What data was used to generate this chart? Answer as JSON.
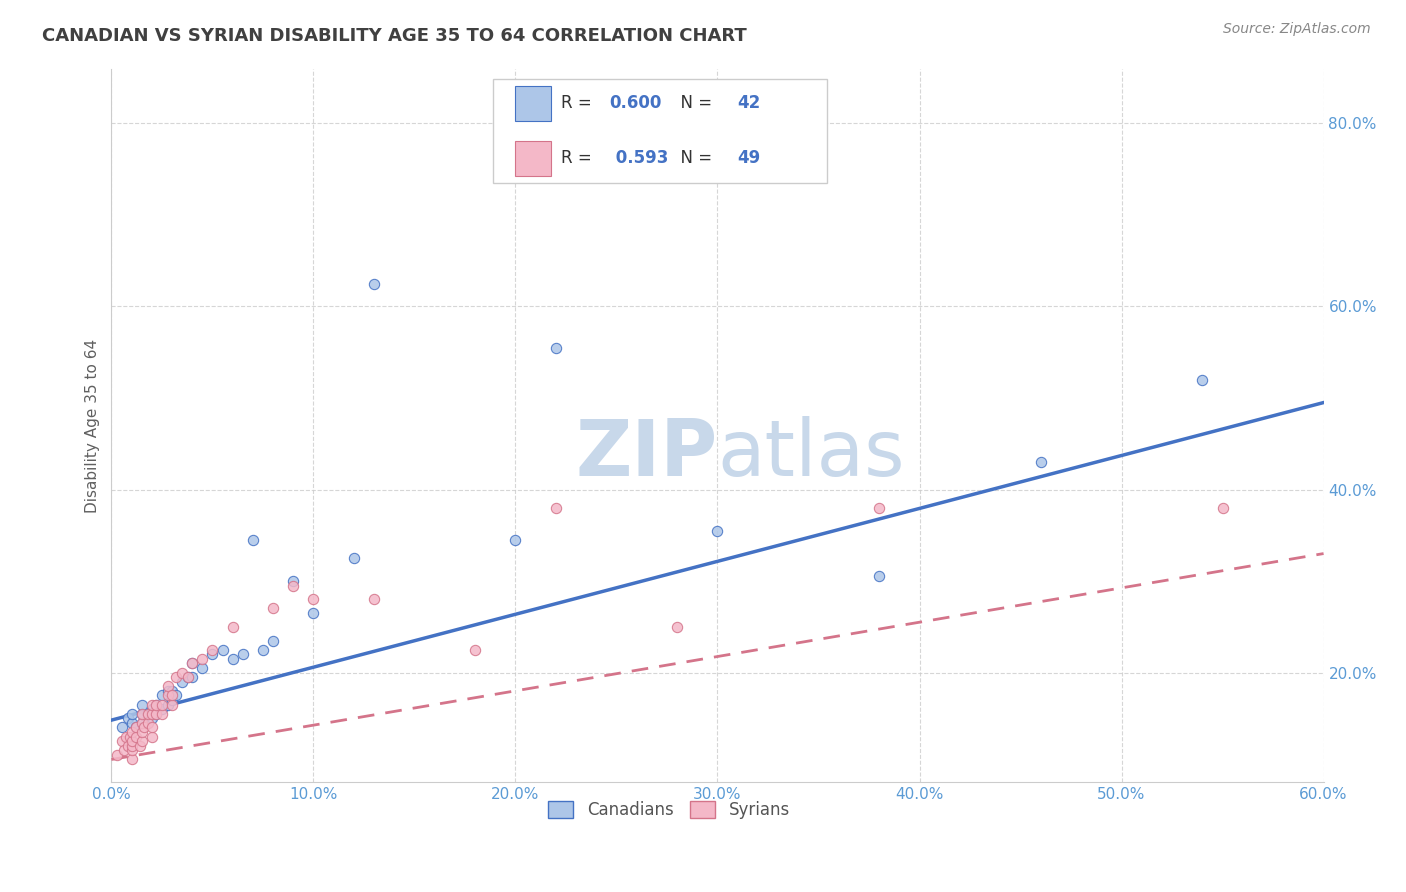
{
  "title": "CANADIAN VS SYRIAN DISABILITY AGE 35 TO 64 CORRELATION CHART",
  "source_text": "Source: ZipAtlas.com",
  "ylabel": "Disability Age 35 to 64",
  "xlim": [
    0.0,
    0.6
  ],
  "ylim": [
    0.08,
    0.86
  ],
  "xticks": [
    0.0,
    0.1,
    0.2,
    0.3,
    0.4,
    0.5,
    0.6
  ],
  "yticks": [
    0.2,
    0.4,
    0.6,
    0.8
  ],
  "ytick_labels": [
    "20.0%",
    "40.0%",
    "60.0%",
    "80.0%"
  ],
  "xtick_labels": [
    "0.0%",
    "10.0%",
    "20.0%",
    "30.0%",
    "40.0%",
    "50.0%",
    "60.0%"
  ],
  "canadian_fill_color": "#adc6e8",
  "syrian_fill_color": "#f4b8c8",
  "canadian_line_color": "#4472c4",
  "syrian_line_color": "#d4748a",
  "legend_text_color": "#4472c4",
  "R_canadian": 0.6,
  "N_canadian": 42,
  "R_syrian": 0.593,
  "N_syrian": 49,
  "watermark_zip": "ZIP",
  "watermark_atlas": "atlas",
  "watermark_color": "#c8d8ea",
  "background_color": "#ffffff",
  "grid_color": "#cccccc",
  "title_color": "#404040",
  "label_color": "#5b9bd5",
  "ylabel_color": "#606060",
  "canadian_points_x": [
    0.005,
    0.008,
    0.01,
    0.01,
    0.012,
    0.015,
    0.015,
    0.015,
    0.018,
    0.02,
    0.02,
    0.022,
    0.022,
    0.025,
    0.025,
    0.028,
    0.028,
    0.03,
    0.03,
    0.032,
    0.035,
    0.038,
    0.04,
    0.04,
    0.045,
    0.05,
    0.055,
    0.06,
    0.065,
    0.07,
    0.075,
    0.08,
    0.09,
    0.1,
    0.12,
    0.13,
    0.2,
    0.22,
    0.3,
    0.38,
    0.46,
    0.54
  ],
  "canadian_points_y": [
    0.14,
    0.15,
    0.145,
    0.155,
    0.14,
    0.145,
    0.155,
    0.165,
    0.155,
    0.15,
    0.16,
    0.155,
    0.165,
    0.16,
    0.175,
    0.165,
    0.18,
    0.17,
    0.18,
    0.175,
    0.19,
    0.195,
    0.195,
    0.21,
    0.205,
    0.22,
    0.225,
    0.215,
    0.22,
    0.345,
    0.225,
    0.235,
    0.3,
    0.265,
    0.325,
    0.625,
    0.345,
    0.555,
    0.355,
    0.305,
    0.43,
    0.52
  ],
  "syrian_points_x": [
    0.003,
    0.005,
    0.006,
    0.007,
    0.008,
    0.009,
    0.01,
    0.01,
    0.01,
    0.01,
    0.01,
    0.012,
    0.012,
    0.014,
    0.015,
    0.015,
    0.015,
    0.015,
    0.016,
    0.018,
    0.018,
    0.02,
    0.02,
    0.02,
    0.02,
    0.022,
    0.022,
    0.025,
    0.025,
    0.028,
    0.028,
    0.03,
    0.03,
    0.032,
    0.035,
    0.038,
    0.04,
    0.045,
    0.05,
    0.06,
    0.08,
    0.09,
    0.1,
    0.13,
    0.18,
    0.22,
    0.28,
    0.38,
    0.55
  ],
  "syrian_points_y": [
    0.11,
    0.125,
    0.115,
    0.13,
    0.12,
    0.13,
    0.105,
    0.115,
    0.12,
    0.125,
    0.135,
    0.13,
    0.14,
    0.12,
    0.125,
    0.135,
    0.145,
    0.155,
    0.14,
    0.145,
    0.155,
    0.13,
    0.14,
    0.155,
    0.165,
    0.155,
    0.165,
    0.155,
    0.165,
    0.175,
    0.185,
    0.165,
    0.175,
    0.195,
    0.2,
    0.195,
    0.21,
    0.215,
    0.225,
    0.25,
    0.27,
    0.295,
    0.28,
    0.28,
    0.225,
    0.38,
    0.25,
    0.38,
    0.38
  ],
  "canadian_trend": [
    0.148,
    0.495
  ],
  "syrian_trend": [
    0.105,
    0.33
  ],
  "bottom_legend_items": [
    "Canadians",
    "Syrians"
  ]
}
